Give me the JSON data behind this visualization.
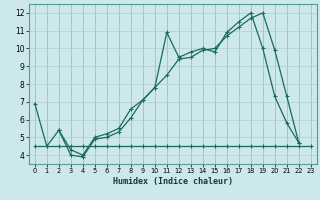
{
  "title": "",
  "xlabel": "Humidex (Indice chaleur)",
  "bg_color": "#cce8ec",
  "line_color": "#1a6b5a",
  "grid_color": "#b0cdd0",
  "grid_color_major": "#c8dfe2",
  "xlim": [
    -0.5,
    23.5
  ],
  "ylim": [
    3.5,
    12.5
  ],
  "xticks": [
    0,
    1,
    2,
    3,
    4,
    5,
    6,
    7,
    8,
    9,
    10,
    11,
    12,
    13,
    14,
    15,
    16,
    17,
    18,
    19,
    20,
    21,
    22,
    23
  ],
  "yticks": [
    4,
    5,
    6,
    7,
    8,
    9,
    10,
    11,
    12
  ],
  "series1_x": [
    0,
    1,
    2,
    3,
    4,
    5,
    6,
    7,
    8,
    9,
    10,
    11,
    12,
    13,
    14,
    15,
    16,
    17,
    18,
    19,
    20,
    21,
    22,
    23
  ],
  "series1_y": [
    4.5,
    4.5,
    4.5,
    4.5,
    4.5,
    4.5,
    4.5,
    4.5,
    4.5,
    4.5,
    4.5,
    4.5,
    4.5,
    4.5,
    4.5,
    4.5,
    4.5,
    4.5,
    4.5,
    4.5,
    4.5,
    4.5,
    4.5,
    4.5
  ],
  "series2_x": [
    0,
    1,
    2,
    3,
    4,
    5,
    6,
    7,
    8,
    9,
    10,
    11,
    12,
    13,
    14,
    15,
    16,
    17,
    18,
    19,
    20,
    21,
    22
  ],
  "series2_y": [
    6.9,
    4.5,
    5.4,
    4.0,
    3.9,
    4.9,
    5.0,
    5.3,
    6.1,
    7.1,
    7.8,
    10.9,
    9.5,
    9.8,
    10.0,
    9.8,
    10.9,
    11.5,
    12.0,
    10.0,
    7.3,
    5.8,
    4.7
  ],
  "series3_x": [
    2,
    3,
    4,
    5,
    6,
    7,
    8,
    9,
    10,
    11,
    12,
    13,
    14,
    15,
    16,
    17,
    18,
    19,
    20,
    21,
    22
  ],
  "series3_y": [
    5.4,
    4.3,
    4.0,
    5.0,
    5.2,
    5.5,
    6.6,
    7.1,
    7.8,
    8.5,
    9.4,
    9.5,
    9.9,
    10.0,
    10.7,
    11.2,
    11.7,
    12.0,
    9.9,
    7.3,
    4.7
  ]
}
